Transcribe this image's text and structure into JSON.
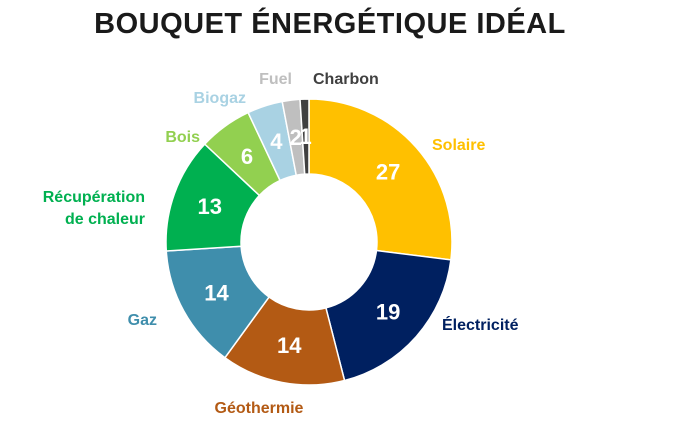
{
  "chart_data": {
    "type": "pie",
    "donut": true,
    "title": "BOUQUET ÉNERGÉTIQUE IDÉAL",
    "legend": "none",
    "slices": [
      {
        "name": "Solaire",
        "value": 27,
        "color": "#FFC000"
      },
      {
        "name": "Électricité",
        "value": 19,
        "color": "#002060"
      },
      {
        "name": "Géothermie",
        "value": 14,
        "color": "#B35A14"
      },
      {
        "name": "Gaz",
        "value": 14,
        "color": "#3F8EAC"
      },
      {
        "name": "Récupération de chaleur",
        "value": 13,
        "color": "#00B050"
      },
      {
        "name": "Bois",
        "value": 6,
        "color": "#92D050"
      },
      {
        "name": "Biogaz",
        "value": 4,
        "color": "#A9D2E3"
      },
      {
        "name": "Fuel",
        "value": 2,
        "color": "#BFBFBF"
      },
      {
        "name": "Charbon",
        "value": 1,
        "color": "#404040"
      }
    ]
  }
}
